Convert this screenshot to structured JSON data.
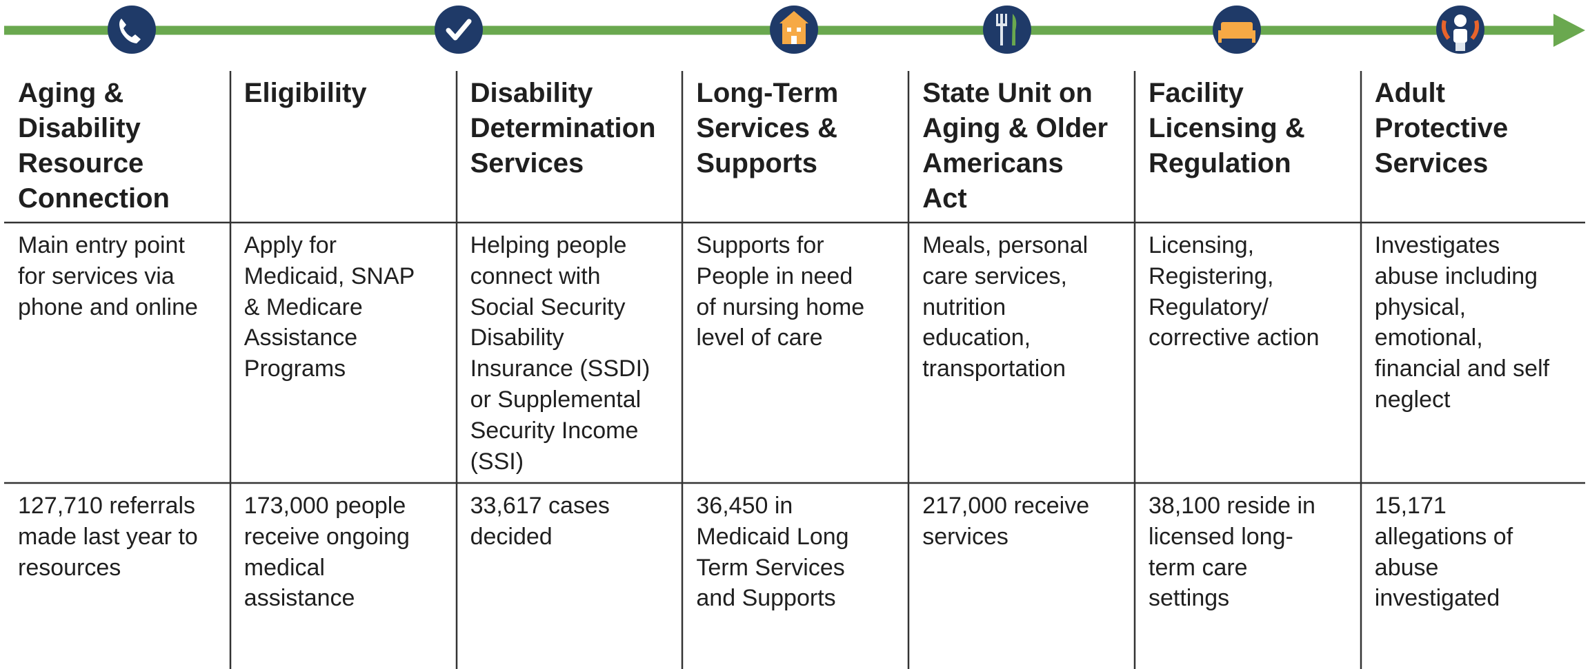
{
  "columns": [
    {
      "title": [
        "Aging &",
        "Disability",
        "Resource",
        "Connection"
      ],
      "description": [
        "Main entry point",
        "for services via",
        "phone and online"
      ],
      "stat": [
        "127,710 referrals",
        "made last year to",
        "resources"
      ]
    },
    {
      "title": [
        "Eligibility"
      ],
      "description": [
        "Apply for",
        "Medicaid, SNAP",
        "& Medicare",
        "Assistance",
        "Programs"
      ],
      "stat": [
        "173,000 people",
        "receive ongoing",
        "medical",
        "assistance"
      ]
    },
    {
      "title": [
        "Disability",
        "Determination",
        "Services"
      ],
      "description": [
        "Helping people",
        "connect with",
        "Social Security",
        "Disability",
        "Insurance (SSDI)",
        "or Supplemental",
        "Security Income",
        "(SSI)"
      ],
      "stat": [
        "33,617 cases",
        "decided"
      ]
    },
    {
      "title": [
        "Long-Term",
        "Services &",
        "Supports"
      ],
      "description": [
        "Supports for",
        "People in need",
        "of nursing home",
        "level of care"
      ],
      "stat": [
        "36,450 in",
        "Medicaid Long",
        "Term Services",
        "and Supports"
      ]
    },
    {
      "title": [
        "State Unit on",
        "Aging & Older",
        "Americans",
        "Act"
      ],
      "description": [
        "Meals, personal",
        "care services,",
        "nutrition",
        "education,",
        "transportation"
      ],
      "stat": [
        "217,000 receive",
        "services"
      ]
    },
    {
      "title": [
        "Facility",
        "Licensing &",
        "Regulation"
      ],
      "description": [
        "Licensing,",
        "Registering,",
        "Regulatory/",
        "corrective action"
      ],
      "stat": [
        "38,100 reside in",
        "licensed long-",
        "term care",
        "settings"
      ]
    },
    {
      "title": [
        "Adult",
        "Protective",
        "Services"
      ],
      "description": [
        "Investigates",
        "abuse including",
        "physical,",
        "emotional,",
        "financial and self",
        "neglect"
      ],
      "stat": [
        "15,171",
        "allegations of",
        "abuse",
        "investigated"
      ]
    }
  ]
}
